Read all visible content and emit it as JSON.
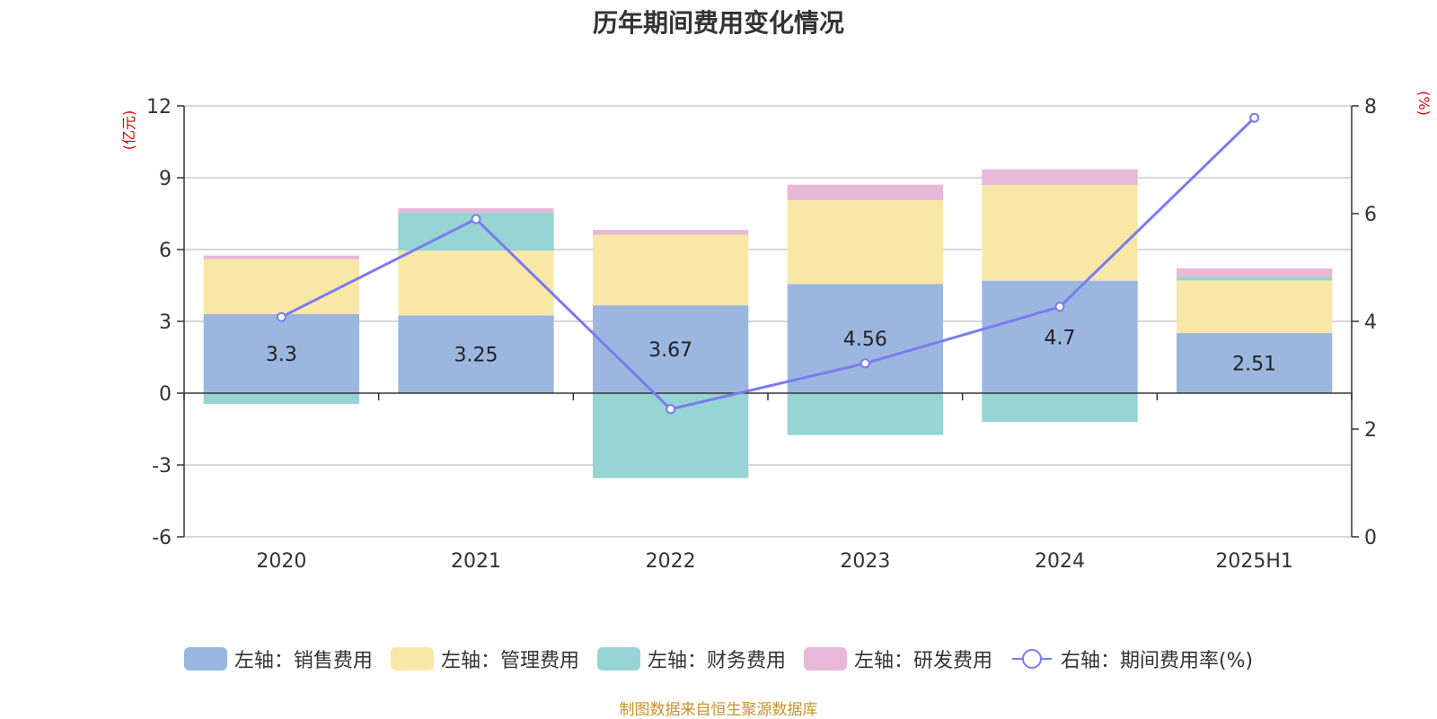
{
  "chart_data": {
    "type": "bar",
    "title": "历年期间费用变化情况",
    "categories": [
      "2020",
      "2021",
      "2022",
      "2023",
      "2024",
      "2025H1"
    ],
    "left_axis": {
      "unit": "(亿元)",
      "ylim": [
        -6,
        12
      ],
      "ticks": [
        -6,
        -3,
        0,
        3,
        6,
        9,
        12
      ]
    },
    "right_axis": {
      "unit": "(%)",
      "ylim": [
        0,
        8
      ],
      "ticks": [
        0,
        2,
        4,
        6,
        8
      ]
    },
    "series": [
      {
        "name": "左轴：销售费用",
        "color": "#9bb7e0",
        "axis": "left",
        "kind": "bar",
        "values": [
          3.3,
          3.25,
          3.67,
          4.56,
          4.7,
          2.51
        ]
      },
      {
        "name": "左轴：管理费用",
        "color": "#f8e7a6",
        "axis": "left",
        "kind": "bar",
        "values": [
          2.3,
          2.7,
          2.95,
          3.5,
          4.0,
          2.2
        ]
      },
      {
        "name": "左轴：财务费用",
        "color": "#97d4d4",
        "axis": "left",
        "kind": "bar",
        "values": [
          -0.45,
          1.6,
          -3.55,
          -1.75,
          -1.2,
          0.15
        ]
      },
      {
        "name": "左轴：研发费用",
        "color": "#e8b8d8",
        "axis": "left",
        "kind": "bar",
        "values": [
          0.15,
          0.18,
          0.2,
          0.65,
          0.65,
          0.35
        ]
      },
      {
        "name": "右轴：期间费用率(%)",
        "color": "#7b7bef",
        "axis": "right",
        "kind": "line",
        "values": [
          4.08,
          5.9,
          2.37,
          3.22,
          4.27,
          7.78
        ]
      }
    ],
    "data_labels_series": "左轴：销售费用",
    "grid": true,
    "legend_position": "bottom"
  },
  "source_note": "制图数据来自恒生聚源数据库"
}
